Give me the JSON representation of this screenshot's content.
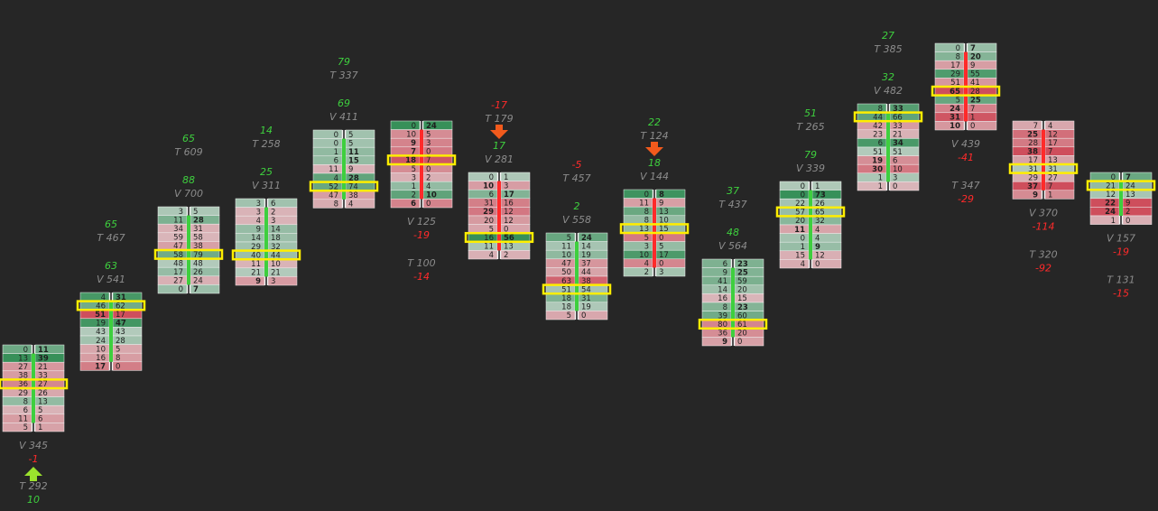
{
  "columns": [
    {
      "body_color": "#3ecf3e",
      "poc": 4,
      "rows": [
        [
          0,
          11
        ],
        [
          13,
          39
        ],
        [
          27,
          21
        ],
        [
          38,
          33
        ],
        [
          36,
          27
        ],
        [
          29,
          26
        ],
        [
          8,
          13
        ],
        [
          6,
          5
        ],
        [
          11,
          6
        ],
        [
          5,
          1
        ]
      ],
      "above": [],
      "below": [
        [
          {
            "text": "V 345",
            "color": "#8c8c8c"
          },
          {
            "text": "-1",
            "color": "#ff2a2a"
          },
          {
            "arrow": "up",
            "color": "#9be22d"
          },
          {
            "text": "T 292",
            "color": "#8c8c8c"
          },
          {
            "text": "10",
            "color": "#3ecf3e"
          }
        ]
      ]
    },
    {
      "body_color": "#3ecf3e",
      "poc": 1,
      "rows": [
        [
          4,
          31
        ],
        [
          46,
          62
        ],
        [
          51,
          17
        ],
        [
          19,
          47
        ],
        [
          43,
          43
        ],
        [
          24,
          28
        ],
        [
          10,
          5
        ],
        [
          16,
          8
        ],
        [
          17,
          0
        ]
      ],
      "above": [
        [
          {
            "text": "65",
            "color": "#3ecf3e"
          },
          {
            "text": "T 467",
            "color": "#8c8c8c"
          }
        ],
        [
          {
            "text": "63",
            "color": "#3ecf3e"
          },
          {
            "text": "V 541",
            "color": "#8c8c8c"
          }
        ]
      ],
      "below": []
    },
    {
      "body_color": "#3ecf3e",
      "poc": 5,
      "rows": [
        [
          3,
          5
        ],
        [
          11,
          28
        ],
        [
          34,
          31
        ],
        [
          59,
          58
        ],
        [
          47,
          38
        ],
        [
          58,
          79
        ],
        [
          48,
          48
        ],
        [
          17,
          26
        ],
        [
          27,
          24
        ],
        [
          0,
          7
        ]
      ],
      "above": [
        [
          {
            "text": "65",
            "color": "#3ecf3e"
          },
          {
            "text": "T 609",
            "color": "#8c8c8c"
          }
        ],
        [
          {
            "text": "88",
            "color": "#3ecf3e"
          },
          {
            "text": "V 700",
            "color": "#8c8c8c"
          }
        ]
      ],
      "below": []
    },
    {
      "body_color": "#3ecf3e",
      "poc": 6,
      "rows": [
        [
          3,
          6
        ],
        [
          3,
          2
        ],
        [
          4,
          3
        ],
        [
          9,
          14
        ],
        [
          14,
          18
        ],
        [
          29,
          32
        ],
        [
          40,
          44
        ],
        [
          11,
          10
        ],
        [
          21,
          21
        ],
        [
          9,
          3
        ]
      ],
      "above": [
        [
          {
            "text": "14",
            "color": "#3ecf3e"
          },
          {
            "text": "T 258",
            "color": "#8c8c8c"
          }
        ],
        [
          {
            "text": "25",
            "color": "#3ecf3e"
          },
          {
            "text": "V 311",
            "color": "#8c8c8c"
          }
        ]
      ],
      "below": []
    },
    {
      "body_color": "#3ecf3e",
      "poc": 6,
      "rows": [
        [
          0,
          5
        ],
        [
          0,
          5
        ],
        [
          1,
          11
        ],
        [
          6,
          15
        ],
        [
          11,
          9
        ],
        [
          4,
          28
        ],
        [
          52,
          74
        ],
        [
          47,
          38
        ],
        [
          8,
          4
        ]
      ],
      "above": [
        [
          {
            "text": "79",
            "color": "#3ecf3e"
          },
          {
            "text": "T 337",
            "color": "#8c8c8c"
          }
        ],
        [
          {
            "text": "69",
            "color": "#3ecf3e"
          },
          {
            "text": "V 411",
            "color": "#8c8c8c"
          }
        ]
      ],
      "below": []
    },
    {
      "body_color": "#ff2a2a",
      "poc": 4,
      "rows": [
        [
          0,
          24
        ],
        [
          10,
          5
        ],
        [
          9,
          3
        ],
        [
          7,
          0
        ],
        [
          18,
          7
        ],
        [
          5,
          0
        ],
        [
          3,
          2
        ],
        [
          1,
          4
        ],
        [
          2,
          10
        ],
        [
          6,
          0
        ]
      ],
      "above": [],
      "below": [
        [
          {
            "text": "V 125",
            "color": "#8c8c8c"
          },
          {
            "text": "-19",
            "color": "#ff2a2a"
          }
        ],
        [
          {
            "text": "T 100",
            "color": "#8c8c8c"
          },
          {
            "text": "-14",
            "color": "#ff2a2a"
          }
        ]
      ]
    },
    {
      "body_color": "#ff2a2a",
      "poc": 7,
      "rows": [
        [
          0,
          1
        ],
        [
          10,
          3
        ],
        [
          6,
          17
        ],
        [
          31,
          16
        ],
        [
          29,
          12
        ],
        [
          20,
          12
        ],
        [
          5,
          0
        ],
        [
          16,
          56
        ],
        [
          11,
          13
        ],
        [
          4,
          2
        ]
      ],
      "above": [
        [
          {
            "text": "-17",
            "color": "#ff2a2a"
          },
          {
            "text": "T 179",
            "color": "#8c8c8c"
          },
          {
            "arrow": "down",
            "color": "#f25a1c"
          },
          {
            "text": "17",
            "color": "#3ecf3e"
          },
          {
            "text": "V 281",
            "color": "#8c8c8c"
          }
        ]
      ],
      "below": []
    },
    {
      "body_color": "#3ecf3e",
      "poc": 6,
      "rows": [
        [
          5,
          24
        ],
        [
          11,
          14
        ],
        [
          10,
          19
        ],
        [
          47,
          37
        ],
        [
          50,
          44
        ],
        [
          63,
          38
        ],
        [
          51,
          54
        ],
        [
          18,
          31
        ],
        [
          18,
          19
        ],
        [
          5,
          0
        ]
      ],
      "above": [
        [
          {
            "text": "-5",
            "color": "#ff2a2a"
          },
          {
            "text": "T 457",
            "color": "#8c8c8c"
          }
        ],
        [
          {
            "text": "2",
            "color": "#3ecf3e"
          },
          {
            "text": "V 558",
            "color": "#8c8c8c"
          }
        ]
      ],
      "below": []
    },
    {
      "body_color": "#ff2a2a",
      "poc": 4,
      "rows": [
        [
          0,
          8
        ],
        [
          11,
          9
        ],
        [
          8,
          13
        ],
        [
          8,
          10
        ],
        [
          13,
          15
        ],
        [
          5,
          0
        ],
        [
          3,
          5
        ],
        [
          10,
          17
        ],
        [
          4,
          0
        ],
        [
          2,
          3
        ]
      ],
      "above": [
        [
          {
            "text": "22",
            "color": "#3ecf3e"
          },
          {
            "text": "T 124",
            "color": "#8c8c8c"
          },
          {
            "arrow": "down",
            "color": "#f25a1c"
          },
          {
            "text": "18",
            "color": "#3ecf3e"
          },
          {
            "text": "V 144",
            "color": "#8c8c8c"
          }
        ]
      ],
      "below": []
    },
    {
      "body_color": "#3ecf3e",
      "poc": 7,
      "rows": [
        [
          6,
          23
        ],
        [
          9,
          25
        ],
        [
          41,
          59
        ],
        [
          14,
          20
        ],
        [
          16,
          15
        ],
        [
          8,
          23
        ],
        [
          39,
          60
        ],
        [
          80,
          61
        ],
        [
          36,
          20
        ],
        [
          9,
          0
        ]
      ],
      "above": [
        [
          {
            "text": "37",
            "color": "#3ecf3e"
          },
          {
            "text": "T 437",
            "color": "#8c8c8c"
          }
        ],
        [
          {
            "text": "48",
            "color": "#3ecf3e"
          },
          {
            "text": "V 564",
            "color": "#8c8c8c"
          }
        ]
      ],
      "below": []
    },
    {
      "body_color": "#3ecf3e",
      "poc": 3,
      "rows": [
        [
          0,
          1
        ],
        [
          0,
          73
        ],
        [
          22,
          26
        ],
        [
          57,
          65
        ],
        [
          20,
          32
        ],
        [
          11,
          4
        ],
        [
          0,
          4
        ],
        [
          1,
          9
        ],
        [
          15,
          12
        ],
        [
          4,
          0
        ]
      ],
      "above": [
        [
          {
            "text": "51",
            "color": "#3ecf3e"
          },
          {
            "text": "T 265",
            "color": "#8c8c8c"
          }
        ],
        [
          {
            "text": "79",
            "color": "#3ecf3e"
          },
          {
            "text": "V 339",
            "color": "#8c8c8c"
          }
        ]
      ],
      "below": []
    },
    {
      "body_color": "#3ecf3e",
      "poc": 1,
      "rows": [
        [
          8,
          33
        ],
        [
          44,
          66
        ],
        [
          42,
          33
        ],
        [
          23,
          21
        ],
        [
          6,
          34
        ],
        [
          51,
          51
        ],
        [
          19,
          6
        ],
        [
          30,
          10
        ],
        [
          1,
          3
        ],
        [
          1,
          0
        ]
      ],
      "above": [
        [
          {
            "text": "27",
            "color": "#3ecf3e"
          },
          {
            "text": "T 385",
            "color": "#8c8c8c"
          }
        ],
        [
          {
            "text": "32",
            "color": "#3ecf3e"
          },
          {
            "text": "V 482",
            "color": "#8c8c8c"
          }
        ]
      ],
      "below": []
    },
    {
      "body_color": "#ff2a2a",
      "poc": 5,
      "rows": [
        [
          0,
          7
        ],
        [
          8,
          20
        ],
        [
          17,
          9
        ],
        [
          29,
          55
        ],
        [
          51,
          41
        ],
        [
          65,
          28
        ],
        [
          5,
          25
        ],
        [
          24,
          7
        ],
        [
          31,
          1
        ],
        [
          10,
          0
        ]
      ],
      "above": [],
      "below": [
        [
          {
            "text": "V 439",
            "color": "#8c8c8c"
          },
          {
            "text": "-41",
            "color": "#ff2a2a"
          }
        ],
        [
          {
            "text": "T 347",
            "color": "#8c8c8c"
          },
          {
            "text": "-29",
            "color": "#ff2a2a"
          }
        ]
      ]
    },
    {
      "body_color": "#ff2a2a",
      "poc": 5,
      "rows": [
        [
          7,
          4
        ],
        [
          25,
          12
        ],
        [
          28,
          17
        ],
        [
          38,
          7
        ],
        [
          17,
          13
        ],
        [
          31,
          31
        ],
        [
          29,
          27
        ],
        [
          37,
          7
        ],
        [
          9,
          1
        ]
      ],
      "above": [],
      "below": [
        [
          {
            "text": "V 370",
            "color": "#8c8c8c"
          },
          {
            "text": "-114",
            "color": "#ff2a2a"
          }
        ],
        [
          {
            "text": "T 320",
            "color": "#8c8c8c"
          },
          {
            "text": "-92",
            "color": "#ff2a2a"
          }
        ]
      ]
    },
    {
      "body_color": "#3ecf3e",
      "poc": 1,
      "rows": [
        [
          0,
          7
        ],
        [
          21,
          24
        ],
        [
          12,
          13
        ],
        [
          22,
          9
        ],
        [
          24,
          2
        ],
        [
          1,
          0
        ]
      ],
      "above": [],
      "below": [
        [
          {
            "text": "V 157",
            "color": "#8c8c8c"
          },
          {
            "text": "-19",
            "color": "#ff2a2a"
          }
        ],
        [
          {
            "text": "T 131",
            "color": "#8c8c8c"
          },
          {
            "text": "-15",
            "color": "#ff2a2a"
          }
        ]
      ]
    }
  ]
}
